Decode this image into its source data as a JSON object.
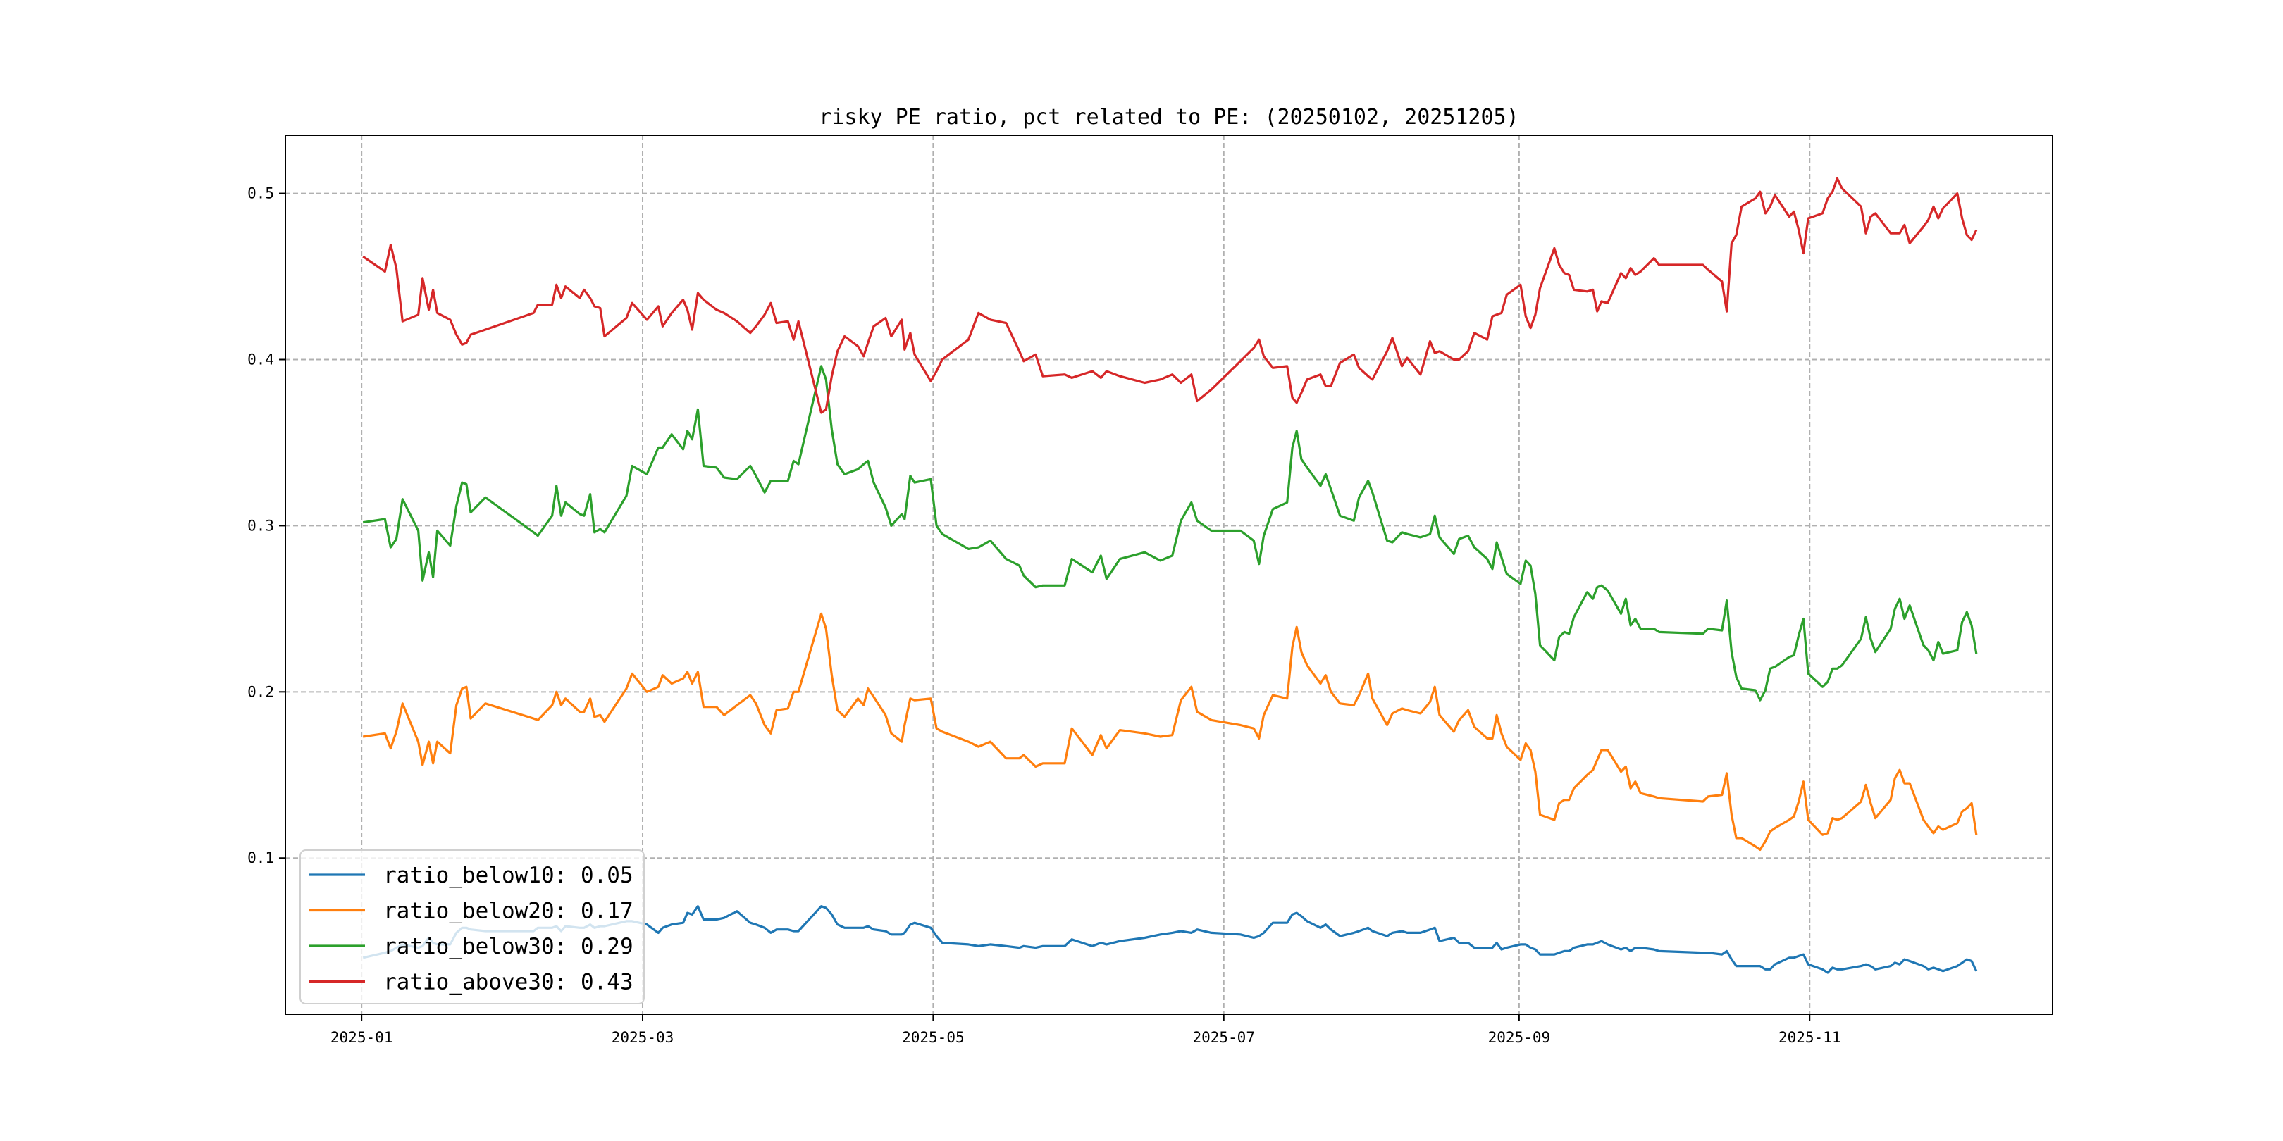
{
  "chart_data": {
    "type": "line",
    "title": "risky PE ratio, pct related to PE: (20250102, 20251205)",
    "xlabel": "",
    "ylabel": "",
    "x_unit_note_days_from": "2025-01-01",
    "xlim_days": [
      -16,
      355
    ],
    "ylim": [
      0.006,
      0.535
    ],
    "grid": true,
    "legend_position": "lower-left",
    "xticks": [
      {
        "label": "2025-01",
        "day": 0
      },
      {
        "label": "2025-03",
        "day": 59
      },
      {
        "label": "2025-05",
        "day": 120
      },
      {
        "label": "2025-07",
        "day": 181
      },
      {
        "label": "2025-09",
        "day": 243
      },
      {
        "label": "2025-11",
        "day": 304
      }
    ],
    "yticks": [
      {
        "label": "0.1",
        "value": 0.1
      },
      {
        "label": "0.2",
        "value": 0.2
      },
      {
        "label": "0.3",
        "value": 0.3
      },
      {
        "label": "0.4",
        "value": 0.4
      },
      {
        "label": "0.5",
        "value": 0.5
      }
    ],
    "x_day": [
      0.3,
      4.9,
      6.1,
      7.3,
      8.6,
      11.9,
      12.8,
      14.1,
      15,
      15.9,
      18.6,
      19.9,
      21.1,
      22,
      22.9,
      26,
      36.1,
      37,
      40,
      40.9,
      41.9,
      42.8,
      45.8,
      46.7,
      48,
      48.9,
      50.1,
      51,
      55.6,
      56.8,
      59.9,
      62.3,
      63.2,
      65.1,
      67.5,
      68.4,
      69.4,
      70.6,
      71.8,
      74.5,
      76.1,
      78.8,
      81.6,
      82.8,
      84.6,
      85.9,
      87.1,
      89.5,
      90.7,
      91.7,
      96.5,
      97.5,
      98.7,
      99.9,
      101.4,
      104.2,
      105.4,
      106.3,
      107.5,
      110,
      111.2,
      113.4,
      114,
      115.2,
      116.1,
      119.5,
      120.7,
      121.9,
      127.4,
      129.5,
      132,
      135.3,
      138.1,
      139,
      141.5,
      143,
      147.6,
      149.1,
      153.4,
      155.2,
      156.4,
      159.2,
      164.4,
      167.7,
      170.2,
      172,
      174.2,
      175.4,
      178.4,
      184.5,
      187.3,
      188.4,
      189.4,
      191.3,
      194.3,
      195.4,
      196.3,
      197.3,
      198.5,
      201.3,
      202.4,
      203.5,
      205.4,
      208.3,
      209.4,
      211.3,
      212.2,
      215.3,
      216.4,
      218.4,
      219.5,
      222.3,
      224.3,
      225.3,
      226.3,
      229.3,
      230.4,
      232.3,
      233.6,
      236.3,
      237.4,
      238.3,
      239.3,
      240.4,
      243.3,
      244.4,
      245.4,
      246.4,
      247.4,
      250.4,
      251.4,
      252.5,
      253.5,
      254.5,
      257.3,
      258.5,
      259.4,
      260.3,
      261.6,
      264.4,
      265.4,
      266.4,
      267.4,
      268.5,
      271.3,
      272.4,
      281.6,
      282.7,
      285.6,
      286.6,
      287.6,
      288.6,
      289.7,
      292.6,
      293.6,
      294.7,
      295.7,
      296.7,
      299.7,
      300.7,
      301.7,
      302.7,
      303.7,
      306.7,
      307.8,
      308.8,
      309.8,
      310.8,
      314.8,
      315.8,
      316.8,
      317.8,
      321.0,
      321.9,
      322.9,
      323.9,
      325.0,
      327.9,
      328.9,
      330.0,
      331.0,
      332.0,
      335.0,
      336.0,
      337.0,
      338.0,
      339.0
    ],
    "series": [
      {
        "name": "ratio_below10: 0.05",
        "color": "#1f77b4",
        "values": [
          0.04,
          0.043,
          0.044,
          0.046,
          0.048,
          0.046,
          0.047,
          0.052,
          0.049,
          0.048,
          0.048,
          0.055,
          0.058,
          0.058,
          0.057,
          0.056,
          0.056,
          0.058,
          0.058,
          0.059,
          0.056,
          0.059,
          0.058,
          0.058,
          0.06,
          0.058,
          0.059,
          0.059,
          0.062,
          0.062,
          0.06,
          0.055,
          0.058,
          0.06,
          0.061,
          0.067,
          0.066,
          0.071,
          0.063,
          0.063,
          0.064,
          0.068,
          0.061,
          0.06,
          0.058,
          0.055,
          0.057,
          0.057,
          0.056,
          0.056,
          0.071,
          0.07,
          0.066,
          0.06,
          0.058,
          0.058,
          0.058,
          0.059,
          0.057,
          0.056,
          0.054,
          0.054,
          0.055,
          0.06,
          0.061,
          0.058,
          0.053,
          0.049,
          0.048,
          0.047,
          0.048,
          0.047,
          0.046,
          0.047,
          0.046,
          0.047,
          0.047,
          0.051,
          0.047,
          0.049,
          0.048,
          0.05,
          0.052,
          0.054,
          0.055,
          0.056,
          0.055,
          0.057,
          0.055,
          0.054,
          0.052,
          0.053,
          0.055,
          0.061,
          0.061,
          0.066,
          0.067,
          0.065,
          0.062,
          0.058,
          0.06,
          0.057,
          0.053,
          0.055,
          0.056,
          0.058,
          0.056,
          0.053,
          0.055,
          0.056,
          0.055,
          0.055,
          0.057,
          0.058,
          0.05,
          0.052,
          0.049,
          0.049,
          0.046,
          0.046,
          0.046,
          0.049,
          0.045,
          0.046,
          0.048,
          0.048,
          0.046,
          0.045,
          0.042,
          0.042,
          0.043,
          0.044,
          0.044,
          0.046,
          0.048,
          0.048,
          0.049,
          0.05,
          0.048,
          0.045,
          0.046,
          0.044,
          0.046,
          0.046,
          0.045,
          0.044,
          0.043,
          0.043,
          0.042,
          0.044,
          0.039,
          0.035,
          0.035,
          0.035,
          0.035,
          0.033,
          0.033,
          0.036,
          0.04,
          0.04,
          0.041,
          0.042,
          0.036,
          0.033,
          0.031,
          0.034,
          0.033,
          0.033,
          0.035,
          0.036,
          0.035,
          0.033,
          0.035,
          0.037,
          0.036,
          0.039,
          0.038,
          0.035,
          0.033,
          0.034,
          0.033,
          0.032,
          0.035,
          0.037,
          0.039,
          0.038,
          0.032
        ]
      },
      {
        "name": "ratio_below20: 0.17",
        "color": "#ff7f0e",
        "values": [
          0.173,
          0.175,
          0.166,
          0.176,
          0.193,
          0.17,
          0.156,
          0.17,
          0.157,
          0.17,
          0.163,
          0.192,
          0.202,
          0.203,
          0.184,
          0.193,
          0.184,
          0.183,
          0.192,
          0.2,
          0.192,
          0.196,
          0.188,
          0.188,
          0.196,
          0.185,
          0.186,
          0.182,
          0.202,
          0.211,
          0.2,
          0.203,
          0.21,
          0.205,
          0.208,
          0.212,
          0.205,
          0.212,
          0.191,
          0.191,
          0.186,
          0.192,
          0.198,
          0.193,
          0.18,
          0.175,
          0.189,
          0.19,
          0.2,
          0.2,
          0.247,
          0.238,
          0.21,
          0.189,
          0.185,
          0.196,
          0.192,
          0.202,
          0.197,
          0.186,
          0.175,
          0.17,
          0.18,
          0.196,
          0.195,
          0.196,
          0.178,
          0.176,
          0.17,
          0.167,
          0.17,
          0.16,
          0.16,
          0.162,
          0.155,
          0.157,
          0.157,
          0.178,
          0.162,
          0.174,
          0.166,
          0.177,
          0.175,
          0.173,
          0.174,
          0.195,
          0.203,
          0.188,
          0.183,
          0.18,
          0.178,
          0.172,
          0.186,
          0.198,
          0.196,
          0.227,
          0.239,
          0.224,
          0.216,
          0.205,
          0.21,
          0.2,
          0.193,
          0.192,
          0.198,
          0.211,
          0.196,
          0.18,
          0.187,
          0.19,
          0.189,
          0.187,
          0.194,
          0.203,
          0.186,
          0.176,
          0.183,
          0.189,
          0.179,
          0.172,
          0.172,
          0.186,
          0.175,
          0.167,
          0.159,
          0.169,
          0.165,
          0.152,
          0.126,
          0.123,
          0.133,
          0.135,
          0.135,
          0.142,
          0.15,
          0.153,
          0.159,
          0.165,
          0.165,
          0.152,
          0.155,
          0.142,
          0.146,
          0.139,
          0.137,
          0.136,
          0.134,
          0.137,
          0.138,
          0.151,
          0.126,
          0.112,
          0.112,
          0.107,
          0.105,
          0.11,
          0.116,
          0.118,
          0.123,
          0.125,
          0.134,
          0.146,
          0.123,
          0.114,
          0.115,
          0.124,
          0.123,
          0.124,
          0.134,
          0.144,
          0.133,
          0.124,
          0.135,
          0.148,
          0.153,
          0.145,
          0.145,
          0.123,
          0.119,
          0.115,
          0.119,
          0.117,
          0.121,
          0.128,
          0.13,
          0.133,
          0.114
        ]
      },
      {
        "name": "ratio_below30: 0.29",
        "color": "#2ca02c",
        "values": [
          0.302,
          0.304,
          0.287,
          0.292,
          0.316,
          0.297,
          0.267,
          0.284,
          0.269,
          0.297,
          0.288,
          0.312,
          0.326,
          0.325,
          0.308,
          0.317,
          0.296,
          0.294,
          0.306,
          0.324,
          0.306,
          0.314,
          0.307,
          0.306,
          0.319,
          0.296,
          0.298,
          0.296,
          0.318,
          0.336,
          0.331,
          0.347,
          0.347,
          0.355,
          0.346,
          0.357,
          0.352,
          0.37,
          0.336,
          0.335,
          0.329,
          0.328,
          0.336,
          0.33,
          0.32,
          0.327,
          0.327,
          0.327,
          0.339,
          0.337,
          0.396,
          0.388,
          0.358,
          0.337,
          0.331,
          0.334,
          0.337,
          0.339,
          0.326,
          0.311,
          0.3,
          0.307,
          0.304,
          0.33,
          0.326,
          0.328,
          0.3,
          0.295,
          0.286,
          0.287,
          0.291,
          0.28,
          0.276,
          0.27,
          0.263,
          0.264,
          0.264,
          0.28,
          0.272,
          0.282,
          0.268,
          0.28,
          0.284,
          0.279,
          0.282,
          0.303,
          0.314,
          0.303,
          0.297,
          0.297,
          0.291,
          0.277,
          0.294,
          0.31,
          0.314,
          0.347,
          0.357,
          0.34,
          0.335,
          0.324,
          0.331,
          0.322,
          0.306,
          0.303,
          0.317,
          0.327,
          0.32,
          0.291,
          0.29,
          0.296,
          0.295,
          0.293,
          0.295,
          0.306,
          0.293,
          0.283,
          0.292,
          0.294,
          0.287,
          0.28,
          0.274,
          0.29,
          0.281,
          0.271,
          0.265,
          0.279,
          0.276,
          0.259,
          0.228,
          0.219,
          0.233,
          0.236,
          0.235,
          0.245,
          0.26,
          0.256,
          0.263,
          0.264,
          0.261,
          0.247,
          0.256,
          0.24,
          0.244,
          0.238,
          0.238,
          0.236,
          0.235,
          0.238,
          0.237,
          0.255,
          0.224,
          0.209,
          0.202,
          0.201,
          0.195,
          0.201,
          0.214,
          0.215,
          0.221,
          0.222,
          0.234,
          0.244,
          0.211,
          0.203,
          0.206,
          0.214,
          0.214,
          0.216,
          0.232,
          0.245,
          0.232,
          0.224,
          0.238,
          0.25,
          0.256,
          0.244,
          0.252,
          0.228,
          0.225,
          0.219,
          0.23,
          0.223,
          0.225,
          0.242,
          0.248,
          0.24,
          0.223
        ]
      },
      {
        "name": "ratio_above30: 0.43",
        "color": "#d62728",
        "values": [
          0.462,
          0.453,
          0.469,
          0.455,
          0.423,
          0.427,
          0.449,
          0.43,
          0.442,
          0.428,
          0.424,
          0.415,
          0.409,
          0.41,
          0.415,
          0.418,
          0.428,
          0.433,
          0.433,
          0.445,
          0.437,
          0.444,
          0.437,
          0.442,
          0.437,
          0.432,
          0.431,
          0.414,
          0.425,
          0.434,
          0.424,
          0.432,
          0.42,
          0.428,
          0.436,
          0.43,
          0.418,
          0.44,
          0.436,
          0.43,
          0.428,
          0.423,
          0.416,
          0.42,
          0.427,
          0.434,
          0.422,
          0.423,
          0.412,
          0.423,
          0.368,
          0.37,
          0.39,
          0.405,
          0.414,
          0.408,
          0.402,
          0.41,
          0.42,
          0.425,
          0.414,
          0.424,
          0.406,
          0.416,
          0.403,
          0.387,
          0.393,
          0.4,
          0.412,
          0.428,
          0.424,
          0.422,
          0.405,
          0.399,
          0.403,
          0.39,
          0.391,
          0.389,
          0.393,
          0.389,
          0.393,
          0.39,
          0.386,
          0.388,
          0.391,
          0.386,
          0.391,
          0.375,
          0.382,
          0.399,
          0.407,
          0.412,
          0.402,
          0.395,
          0.396,
          0.377,
          0.374,
          0.38,
          0.388,
          0.391,
          0.384,
          0.384,
          0.398,
          0.403,
          0.395,
          0.39,
          0.388,
          0.405,
          0.413,
          0.396,
          0.401,
          0.391,
          0.411,
          0.404,
          0.405,
          0.4,
          0.4,
          0.405,
          0.416,
          0.412,
          0.426,
          0.427,
          0.428,
          0.439,
          0.445,
          0.426,
          0.419,
          0.427,
          0.443,
          0.467,
          0.457,
          0.452,
          0.451,
          0.442,
          0.441,
          0.442,
          0.429,
          0.435,
          0.434,
          0.452,
          0.449,
          0.455,
          0.451,
          0.453,
          0.461,
          0.457,
          0.457,
          0.454,
          0.447,
          0.429,
          0.47,
          0.475,
          0.492,
          0.497,
          0.501,
          0.488,
          0.492,
          0.499,
          0.486,
          0.489,
          0.478,
          0.464,
          0.485,
          0.488,
          0.497,
          0.501,
          0.509,
          0.503,
          0.492,
          0.476,
          0.486,
          0.488,
          0.476,
          0.476,
          0.476,
          0.481,
          0.47,
          0.48,
          0.484,
          0.492,
          0.485,
          0.491,
          0.5,
          0.485,
          0.475,
          0.472,
          0.478
        ]
      }
    ]
  }
}
